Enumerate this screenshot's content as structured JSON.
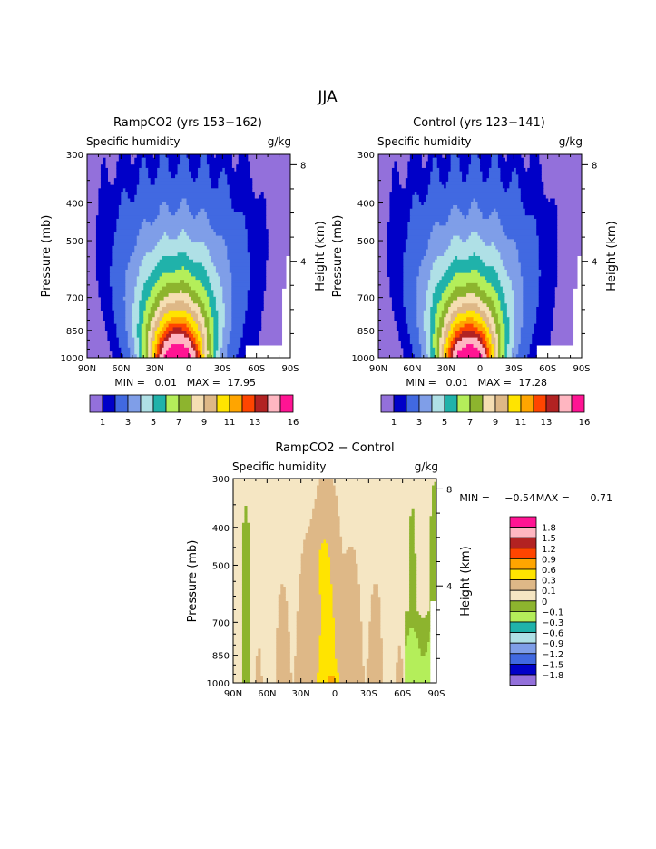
{
  "main_title": "JJA",
  "palette": [
    "#9370db",
    "#0000c8",
    "#4169e1",
    "#7f9ee8",
    "#afe0e6",
    "#20b2aa",
    "#b4ee5a",
    "#8db42e",
    "#f5deb3",
    "#deb887",
    "#ffe400",
    "#ffa500",
    "#ff4500",
    "#b22222",
    "#ffb6c1",
    "#ff1493"
  ],
  "diff_palette": [
    "#9370db",
    "#0000c8",
    "#4169e1",
    "#7f9ee8",
    "#afe0e6",
    "#20b2aa",
    "#b4ee5a",
    "#8db42e",
    "#f5e6c3",
    "#deb887",
    "#ffe400",
    "#ffa500",
    "#ff4500",
    "#b22222",
    "#ffb6c1",
    "#ff1493"
  ],
  "chart_data": [
    {
      "type": "heatmap",
      "title": "RampCO2 (yrs 153−162)",
      "subtitle_left": "Specific humidity",
      "subtitle_right": "g/kg",
      "ylabel": "Pressure (mb)",
      "ylabel_right": "Height (km)",
      "x_ticks": [
        "90N",
        "60N",
        "30N",
        "0",
        "30S",
        "60S",
        "90S"
      ],
      "y_ticks": [
        "300",
        "400",
        "500",
        "700",
        "850",
        "1000"
      ],
      "y_ticks_right": [
        "8",
        "4"
      ],
      "min_text": "MIN =",
      "min_value": "0.01",
      "max_text": "MAX =",
      "max_value": "17.95",
      "colorbar_labels": [
        "1",
        "3",
        "5",
        "7",
        "9",
        "11",
        "13",
        "16"
      ],
      "peak_value": 17.95
    },
    {
      "type": "heatmap",
      "title": "Control (yrs 123−141)",
      "subtitle_left": "Specific humidity",
      "subtitle_right": "g/kg",
      "ylabel": "Pressure (mb)",
      "ylabel_right": "Height (km)",
      "x_ticks": [
        "90N",
        "60N",
        "30N",
        "0",
        "30S",
        "60S",
        "90S"
      ],
      "y_ticks": [
        "300",
        "400",
        "500",
        "700",
        "850",
        "1000"
      ],
      "y_ticks_right": [
        "8",
        "4"
      ],
      "min_text": "MIN =",
      "min_value": "0.01",
      "max_text": "MAX =",
      "max_value": "17.28",
      "colorbar_labels": [
        "1",
        "3",
        "5",
        "7",
        "9",
        "11",
        "13",
        "16"
      ],
      "peak_value": 17.28
    },
    {
      "type": "heatmap",
      "title": "RampCO2 − Control",
      "subtitle_left": "Specific humidity",
      "subtitle_right": "g/kg",
      "ylabel": "Pressure (mb)",
      "ylabel_right": "Height (km)",
      "x_ticks": [
        "90N",
        "60N",
        "30N",
        "0",
        "30S",
        "60S",
        "90S"
      ],
      "y_ticks": [
        "300",
        "400",
        "500",
        "700",
        "850",
        "1000"
      ],
      "y_ticks_right": [
        "8",
        "4"
      ],
      "min_text": "MIN =",
      "min_value": "−0.54",
      "max_text": "MAX =",
      "max_value": "0.71",
      "colorbar_labels": [
        "1.8",
        "1.5",
        "1.2",
        "0.9",
        "0.6",
        "0.3",
        "0.1",
        "0",
        "−0.1",
        "−0.3",
        "−0.6",
        "−0.9",
        "−1.2",
        "−1.5",
        "−1.8"
      ]
    }
  ]
}
